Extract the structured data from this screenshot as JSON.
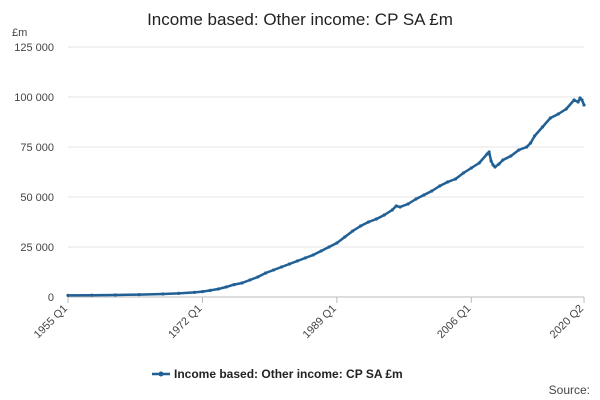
{
  "chart_data": {
    "type": "line",
    "title": "Income based: Other income: CP SA £m",
    "unit_label": "£m",
    "ylim": [
      0,
      125000
    ],
    "yticks": [
      0,
      25000,
      50000,
      75000,
      100000,
      125000
    ],
    "ytick_labels": [
      "0",
      "25 000",
      "50 000",
      "75 000",
      "100 000",
      "125 000"
    ],
    "xlim": [
      1955.0,
      2020.25
    ],
    "xticks": [
      {
        "label": "1955 Q1",
        "value": 1955.0
      },
      {
        "label": "1972 Q1",
        "value": 1972.0
      },
      {
        "label": "1989 Q1",
        "value": 1989.0
      },
      {
        "label": "2006 Q1",
        "value": 2006.0
      },
      {
        "label": "2020 Q2",
        "value": 2020.25
      }
    ],
    "grid": "horizontal",
    "legend_position": "bottom",
    "series": [
      {
        "name": "Income based: Other income: CP SA £m",
        "color": "#206095",
        "points": [
          [
            1955.0,
            800
          ],
          [
            1958.0,
            900
          ],
          [
            1961.0,
            1000
          ],
          [
            1964.0,
            1200
          ],
          [
            1967.0,
            1500
          ],
          [
            1969.0,
            1800
          ],
          [
            1971.0,
            2300
          ],
          [
            1972.0,
            2700
          ],
          [
            1973.0,
            3300
          ],
          [
            1974.0,
            4000
          ],
          [
            1975.0,
            5000
          ],
          [
            1976.0,
            6200
          ],
          [
            1977.0,
            7000
          ],
          [
            1978.0,
            8500
          ],
          [
            1979.0,
            10000
          ],
          [
            1980.0,
            12000
          ],
          [
            1981.0,
            13500
          ],
          [
            1982.0,
            15000
          ],
          [
            1983.0,
            16500
          ],
          [
            1984.0,
            18000
          ],
          [
            1985.0,
            19500
          ],
          [
            1986.0,
            21000
          ],
          [
            1987.0,
            23000
          ],
          [
            1988.0,
            25000
          ],
          [
            1989.0,
            27000
          ],
          [
            1990.0,
            30000
          ],
          [
            1991.0,
            33000
          ],
          [
            1992.0,
            35500
          ],
          [
            1993.0,
            37500
          ],
          [
            1994.0,
            39000
          ],
          [
            1995.0,
            41000
          ],
          [
            1996.0,
            43500
          ],
          [
            1996.5,
            45500
          ],
          [
            1997.0,
            45000
          ],
          [
            1998.0,
            46500
          ],
          [
            1999.0,
            49000
          ],
          [
            2000.0,
            51000
          ],
          [
            2001.0,
            53000
          ],
          [
            2002.0,
            55500
          ],
          [
            2003.0,
            57500
          ],
          [
            2004.0,
            59000
          ],
          [
            2005.0,
            62000
          ],
          [
            2006.0,
            64500
          ],
          [
            2007.0,
            67000
          ],
          [
            2008.0,
            71500
          ],
          [
            2008.25,
            72500
          ],
          [
            2008.5,
            68000
          ],
          [
            2008.75,
            66000
          ],
          [
            2009.0,
            65000
          ],
          [
            2009.5,
            66500
          ],
          [
            2010.0,
            68500
          ],
          [
            2011.0,
            70500
          ],
          [
            2012.0,
            73500
          ],
          [
            2013.0,
            75000
          ],
          [
            2013.5,
            77000
          ],
          [
            2014.0,
            80500
          ],
          [
            2015.0,
            85000
          ],
          [
            2016.0,
            89500
          ],
          [
            2017.0,
            91500
          ],
          [
            2018.0,
            94000
          ],
          [
            2019.0,
            98500
          ],
          [
            2019.5,
            97500
          ],
          [
            2019.75,
            99500
          ],
          [
            2020.0,
            98500
          ],
          [
            2020.25,
            96000
          ]
        ]
      }
    ],
    "legend": [
      {
        "label": "Income based: Other income: CP SA £m",
        "color": "#206095"
      }
    ],
    "source_label": "Source:"
  }
}
